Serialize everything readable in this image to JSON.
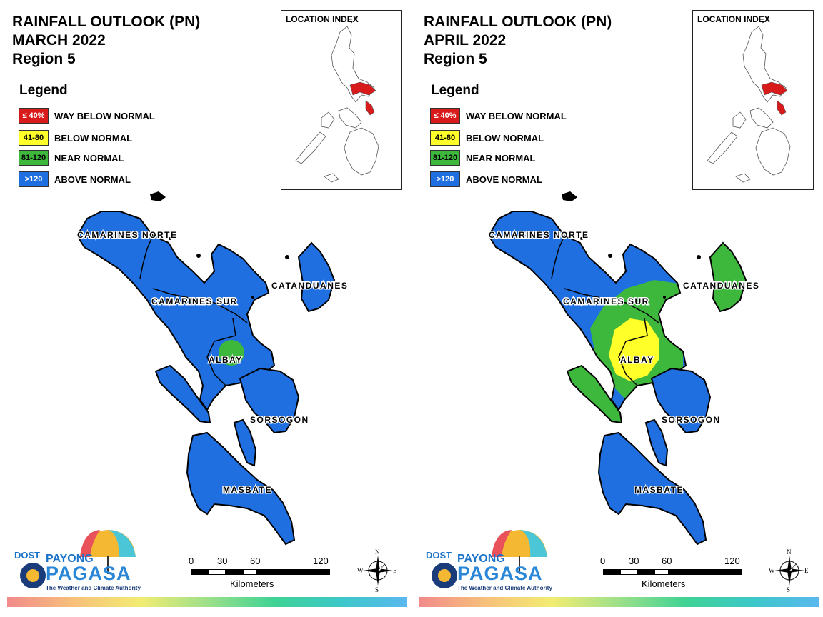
{
  "panels": [
    {
      "title_line1": "RAINFALL OUTLOOK (PN)",
      "title_line2": "MARCH 2022",
      "title_line3": "Region 5",
      "location_index_title": "LOCATION INDEX",
      "scale_unit": "Kilometers"
    },
    {
      "title_line1": "RAINFALL OUTLOOK (PN)",
      "title_line2": "APRIL 2022",
      "title_line3": "Region 5",
      "location_index_title": "LOCATION INDEX",
      "scale_unit": "Kilometers"
    }
  ],
  "legend": {
    "title": "Legend",
    "items": [
      {
        "range": "≤ 40%",
        "label": "WAY BELOW NORMAL",
        "color": "#d91a1a",
        "text_color": "#ffffff"
      },
      {
        "range": "41-80",
        "label": "BELOW NORMAL",
        "color": "#ffff2a",
        "text_color": "#000000"
      },
      {
        "range": "81-120",
        "label": "NEAR NORMAL",
        "color": "#3db83d",
        "text_color": "#000000"
      },
      {
        "range": ">120",
        "label": "ABOVE NORMAL",
        "color": "#1f6fe0",
        "text_color": "#ffffff"
      }
    ]
  },
  "provinces": {
    "camarines_norte": "CAMARINES NORTE",
    "camarines_sur": "CAMARINES SUR",
    "catanduanes": "CATANDUANES",
    "albay": "ALBAY",
    "sorsogon": "SORSOGON",
    "masbate": "MASBATE"
  },
  "scale": {
    "ticks": [
      "0",
      "30",
      "60",
      "120"
    ]
  },
  "compass": {
    "n": "N",
    "s": "S",
    "e": "E",
    "w": "W"
  },
  "logo": {
    "dost": "DOST",
    "payong": "PAYONG",
    "pagasa": "PAGASA",
    "tagline": "The Weather and Climate Authority"
  },
  "colors": {
    "above_normal": "#1f6fe0",
    "near_normal": "#3db83d",
    "below_normal": "#ffff2a",
    "way_below_normal": "#d91a1a"
  }
}
